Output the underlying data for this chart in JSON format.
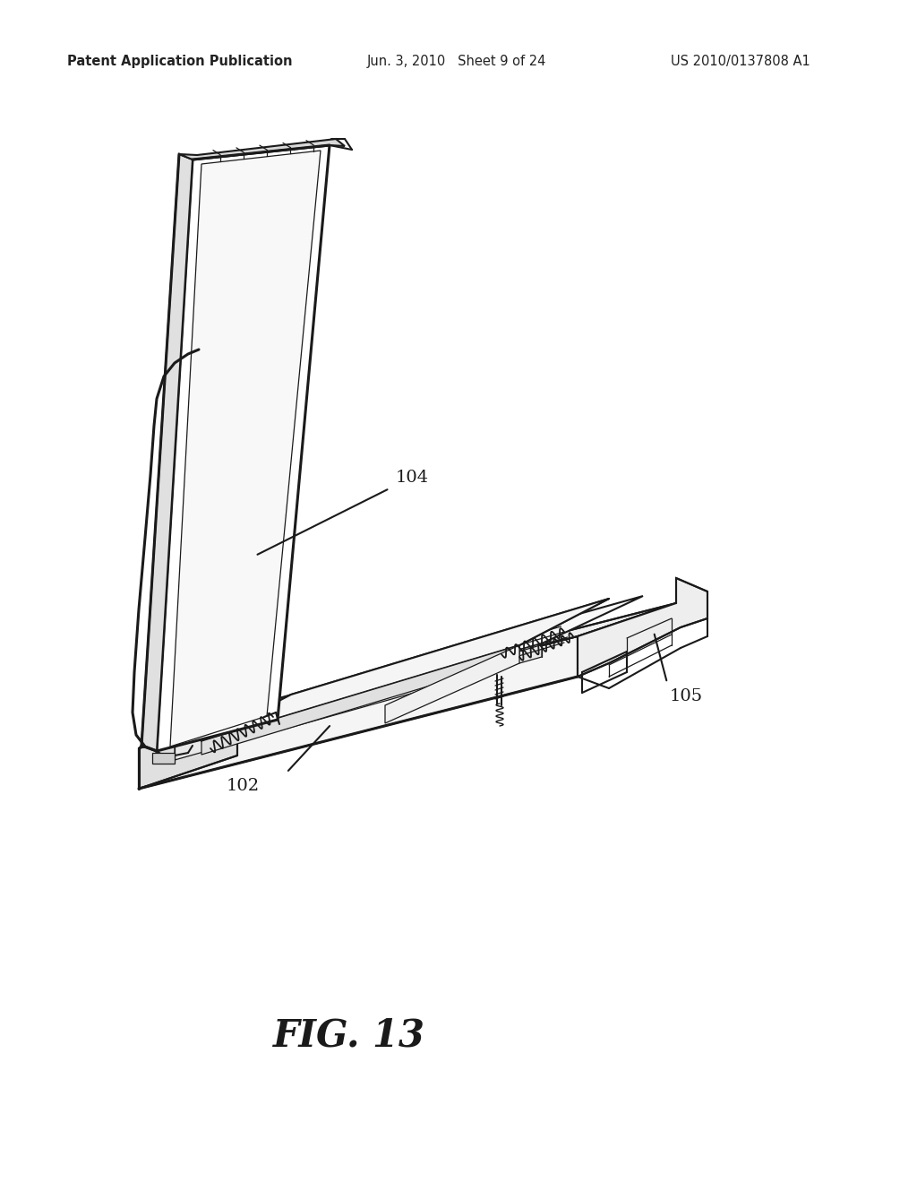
{
  "background_color": "#ffffff",
  "header_left": "Patent Application Publication",
  "header_center": "Jun. 3, 2010   Sheet 9 of 24",
  "header_right": "US 2010/0137808 A1",
  "header_fontsize": 10.5,
  "figure_label": "FIG. 13",
  "figure_label_fontsize": 30,
  "label_fontsize": 14,
  "line_color": "#1a1a1a",
  "lw_thin": 0.9,
  "lw_med": 1.5,
  "lw_thick": 2.2
}
